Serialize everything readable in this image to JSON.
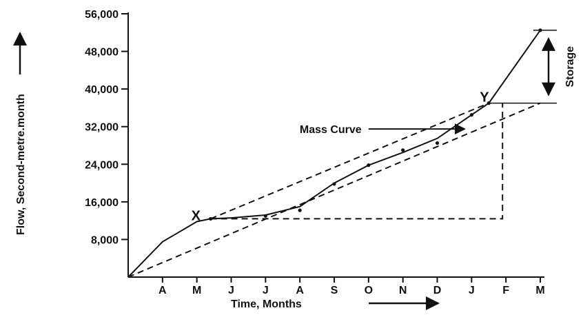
{
  "chart_data": {
    "type": "line",
    "title": "",
    "xlabel": "Time, Months",
    "ylabel": "Flow, Second-metre.month",
    "x_ticks": [
      "A",
      "M",
      "J",
      "J",
      "A",
      "S",
      "O",
      "N",
      "D",
      "J",
      "F",
      "M"
    ],
    "y_ticks": [
      "8,000",
      "16,000",
      "24,000",
      "32,000",
      "40,000",
      "48,000",
      "56,000"
    ],
    "y_tick_values": [
      8000,
      16000,
      24000,
      32000,
      40000,
      48000,
      56000
    ],
    "ylim": [
      0,
      56000
    ],
    "xlim": [
      0,
      12
    ],
    "grid": false,
    "series": [
      {
        "name": "Mass Curve",
        "style": "solid",
        "points": [
          [
            0,
            0
          ],
          [
            1,
            7500
          ],
          [
            2,
            11800
          ],
          [
            2.4,
            12400
          ],
          [
            3,
            12600
          ],
          [
            4,
            13200
          ],
          [
            5,
            15000
          ],
          [
            6,
            20000
          ],
          [
            7,
            23800
          ],
          [
            8,
            26500
          ],
          [
            9,
            29500
          ],
          [
            10,
            34500
          ],
          [
            10.5,
            37000
          ],
          [
            12,
            52500
          ]
        ],
        "markers": [
          [
            2.4,
            12400
          ],
          [
            4,
            13000
          ],
          [
            5,
            14200
          ],
          [
            6,
            19800
          ],
          [
            7,
            23800
          ],
          [
            8,
            27000
          ],
          [
            9,
            28500
          ],
          [
            10,
            34500
          ],
          [
            10.5,
            37000
          ],
          [
            12,
            52500
          ]
        ]
      },
      {
        "name": "",
        "style": "dashed",
        "points": [
          [
            2.4,
            12400
          ],
          [
            10.5,
            37000
          ]
        ]
      },
      {
        "name": "",
        "style": "dashed",
        "points": [
          [
            0,
            0
          ],
          [
            12,
            37000
          ]
        ]
      },
      {
        "name": "",
        "style": "dashed",
        "points": [
          [
            2.4,
            12400
          ],
          [
            10.9,
            12400
          ],
          [
            10.9,
            37000
          ]
        ]
      }
    ],
    "annotations": [
      {
        "id": "x",
        "text": "X",
        "x": 2.0,
        "y": 12400
      },
      {
        "id": "y",
        "text": "Y",
        "x": 10.4,
        "y": 37000
      },
      {
        "id": "mass_curve",
        "text": "Mass Curve",
        "x": 6.8,
        "y": 31500,
        "arrow_to": [
          9.8,
          31500
        ]
      },
      {
        "id": "storage",
        "text": "Storage",
        "x": 12.3,
        "y_from": 37000,
        "y_to": 52500
      }
    ]
  }
}
